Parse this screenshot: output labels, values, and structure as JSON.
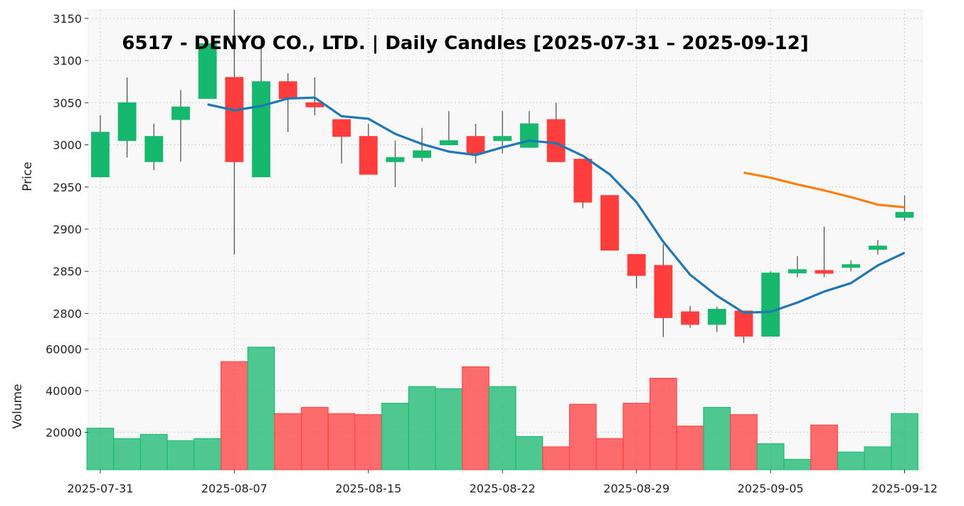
{
  "chart_data": {
    "type": "candlestick",
    "title": "6517 - DENYO CO., LTD. | Daily Candles [2025-07-31 – 2025-09-12]",
    "price_axis": {
      "label": "Price",
      "ylim": [
        2770,
        3160
      ],
      "ticks": [
        2800,
        2850,
        2900,
        2950,
        3000,
        3050,
        3100,
        3150
      ]
    },
    "volume_axis": {
      "label": "Volume",
      "ylim": [
        2000,
        65000
      ],
      "ticks": [
        20000,
        40000,
        60000
      ]
    },
    "x_tick_labels": [
      "2025-07-31",
      "2025-08-07",
      "2025-08-15",
      "2025-08-22",
      "2025-08-29",
      "2025-09-05",
      "2025-09-12"
    ],
    "x_tick_indices": [
      0,
      5,
      10,
      15,
      20,
      25,
      30
    ],
    "grid": true,
    "colors": {
      "up": "#16b86e",
      "down": "#ff3d3d",
      "ma_short": "#1f77b4",
      "ma_long": "#ff7f0e",
      "panel_bg": "#f8f8f8"
    },
    "candles": [
      {
        "date": "2025-07-31",
        "open": 2962,
        "high": 3035,
        "low": 2962,
        "close": 3015,
        "volume": 22000
      },
      {
        "date": "2025-08-01",
        "open": 3005,
        "high": 3080,
        "low": 2985,
        "close": 3050,
        "volume": 17000
      },
      {
        "date": "2025-08-04",
        "open": 2980,
        "high": 3025,
        "low": 2970,
        "close": 3010,
        "volume": 19000
      },
      {
        "date": "2025-08-05",
        "open": 3030,
        "high": 3065,
        "low": 2980,
        "close": 3045,
        "volume": 16000
      },
      {
        "date": "2025-08-06",
        "open": 3055,
        "high": 3120,
        "low": 3055,
        "close": 3120,
        "volume": 17000
      },
      {
        "date": "2025-08-07",
        "open": 3080,
        "high": 3160,
        "low": 2870,
        "close": 2980,
        "volume": 54000
      },
      {
        "date": "2025-08-08",
        "open": 2962,
        "high": 3125,
        "low": 2962,
        "close": 3075,
        "volume": 61000
      },
      {
        "date": "2025-08-12",
        "open": 3075,
        "high": 3085,
        "low": 3015,
        "close": 3055,
        "volume": 29000
      },
      {
        "date": "2025-08-13",
        "open": 3050,
        "high": 3080,
        "low": 3035,
        "close": 3045,
        "volume": 32000
      },
      {
        "date": "2025-08-14",
        "open": 3030,
        "high": 3030,
        "low": 2978,
        "close": 3010,
        "volume": 29000
      },
      {
        "date": "2025-08-15",
        "open": 3010,
        "high": 3025,
        "low": 2965,
        "close": 2965,
        "volume": 28500
      },
      {
        "date": "2025-08-18",
        "open": 2980,
        "high": 3005,
        "low": 2950,
        "close": 2985,
        "volume": 34000
      },
      {
        "date": "2025-08-19",
        "open": 2985,
        "high": 3020,
        "low": 2980,
        "close": 2993,
        "volume": 42000
      },
      {
        "date": "2025-08-20",
        "open": 3000,
        "high": 3040,
        "low": 3000,
        "close": 3005,
        "volume": 41000
      },
      {
        "date": "2025-08-21",
        "open": 3010,
        "high": 3025,
        "low": 2978,
        "close": 2990,
        "volume": 51500
      },
      {
        "date": "2025-08-22",
        "open": 3005,
        "high": 3040,
        "low": 2990,
        "close": 3010,
        "volume": 42000
      },
      {
        "date": "2025-08-25",
        "open": 2997,
        "high": 3040,
        "low": 2997,
        "close": 3025,
        "volume": 18000
      },
      {
        "date": "2025-08-26",
        "open": 3030,
        "high": 3050,
        "low": 2980,
        "close": 2980,
        "volume": 13000
      },
      {
        "date": "2025-08-27",
        "open": 2983,
        "high": 2983,
        "low": 2925,
        "close": 2932,
        "volume": 33500
      },
      {
        "date": "2025-08-28",
        "open": 2940,
        "high": 2940,
        "low": 2875,
        "close": 2875,
        "volume": 17000
      },
      {
        "date": "2025-08-29",
        "open": 2870,
        "high": 2870,
        "low": 2830,
        "close": 2845,
        "volume": 34000
      },
      {
        "date": "2025-09-01",
        "open": 2857,
        "high": 2882,
        "low": 2772,
        "close": 2795,
        "volume": 46000
      },
      {
        "date": "2025-09-02",
        "open": 2802,
        "high": 2809,
        "low": 2783,
        "close": 2787,
        "volume": 23000
      },
      {
        "date": "2025-09-03",
        "open": 2787,
        "high": 2808,
        "low": 2778,
        "close": 2805,
        "volume": 32000
      },
      {
        "date": "2025-09-04",
        "open": 2803,
        "high": 2803,
        "low": 2765,
        "close": 2773,
        "volume": 28500
      },
      {
        "date": "2025-09-05",
        "open": 2773,
        "high": 2850,
        "low": 2773,
        "close": 2848,
        "volume": 14500
      },
      {
        "date": "2025-09-08",
        "open": 2848,
        "high": 2868,
        "low": 2843,
        "close": 2852,
        "volume": 7000
      },
      {
        "date": "2025-09-09",
        "open": 2851,
        "high": 2903,
        "low": 2843,
        "close": 2848,
        "volume": 23500
      },
      {
        "date": "2025-09-10",
        "open": 2855,
        "high": 2863,
        "low": 2850,
        "close": 2858,
        "volume": 10500
      },
      {
        "date": "2025-09-11",
        "open": 2876,
        "high": 2887,
        "low": 2870,
        "close": 2880,
        "volume": 13000
      },
      {
        "date": "2025-09-12",
        "open": 2914,
        "high": 2940,
        "low": 2910,
        "close": 2920,
        "volume": 29000
      }
    ],
    "ma_short": [
      null,
      null,
      null,
      null,
      3048,
      3041,
      3046,
      3055,
      3056,
      3034,
      3031,
      3013,
      3001,
      2992,
      2988,
      2997,
      3005,
      3002,
      2987,
      2965,
      2932,
      2885,
      2846,
      2821,
      2801,
      2802,
      2813,
      2826,
      2836,
      2857,
      2872
    ],
    "ma_long": [
      null,
      null,
      null,
      null,
      null,
      null,
      null,
      null,
      null,
      null,
      null,
      null,
      null,
      null,
      null,
      null,
      null,
      null,
      null,
      null,
      null,
      null,
      null,
      null,
      2967,
      2961,
      2953,
      2946,
      2938,
      2929,
      2926
    ]
  }
}
